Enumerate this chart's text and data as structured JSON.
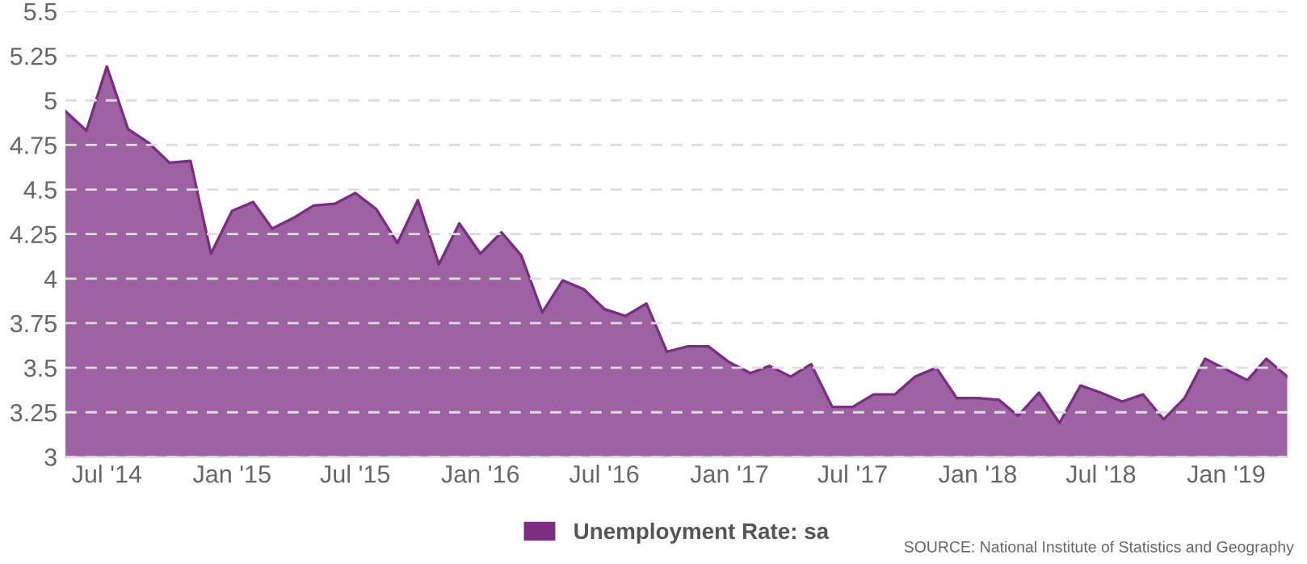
{
  "chart_data": {
    "type": "area",
    "x": [
      "2014-05",
      "2014-06",
      "2014-07",
      "2014-08",
      "2014-09",
      "2014-10",
      "2014-11",
      "2014-12",
      "2015-01",
      "2015-02",
      "2015-03",
      "2015-04",
      "2015-05",
      "2015-06",
      "2015-07",
      "2015-08",
      "2015-09",
      "2015-10",
      "2015-11",
      "2015-12",
      "2016-01",
      "2016-02",
      "2016-03",
      "2016-04",
      "2016-05",
      "2016-06",
      "2016-07",
      "2016-08",
      "2016-09",
      "2016-10",
      "2016-11",
      "2016-12",
      "2017-01",
      "2017-02",
      "2017-03",
      "2017-04",
      "2017-05",
      "2017-06",
      "2017-07",
      "2017-08",
      "2017-09",
      "2017-10",
      "2017-11",
      "2017-12",
      "2018-01",
      "2018-02",
      "2018-03",
      "2018-04",
      "2018-05",
      "2018-06",
      "2018-07",
      "2018-08",
      "2018-09",
      "2018-10",
      "2018-11",
      "2018-12",
      "2019-01",
      "2019-02",
      "2019-03",
      "2019-04"
    ],
    "series": [
      {
        "name": "Unemployment Rate: sa",
        "color": "#7b2d83",
        "values": [
          4.94,
          4.83,
          5.19,
          4.84,
          4.76,
          4.65,
          4.66,
          4.14,
          4.38,
          4.43,
          4.28,
          4.34,
          4.41,
          4.42,
          4.48,
          4.39,
          4.2,
          4.44,
          4.08,
          4.31,
          4.14,
          4.26,
          4.13,
          3.81,
          3.99,
          3.94,
          3.83,
          3.79,
          3.86,
          3.59,
          3.62,
          3.62,
          3.53,
          3.47,
          3.51,
          3.45,
          3.52,
          3.28,
          3.28,
          3.35,
          3.35,
          3.45,
          3.5,
          3.33,
          3.33,
          3.32,
          3.23,
          3.36,
          3.19,
          3.4,
          3.36,
          3.31,
          3.35,
          3.21,
          3.33,
          3.55,
          3.49,
          3.43,
          3.55,
          3.45
        ]
      }
    ],
    "xlim": [
      "2014-05",
      "2019-04"
    ],
    "xticks": [
      {
        "value": "2014-07",
        "label": "Jul '14"
      },
      {
        "value": "2015-01",
        "label": "Jan '15"
      },
      {
        "value": "2015-07",
        "label": "Jul '15"
      },
      {
        "value": "2016-01",
        "label": "Jan '16"
      },
      {
        "value": "2016-07",
        "label": "Jul '16"
      },
      {
        "value": "2017-01",
        "label": "Jan '17"
      },
      {
        "value": "2017-07",
        "label": "Jul '17"
      },
      {
        "value": "2018-01",
        "label": "Jan '18"
      },
      {
        "value": "2018-07",
        "label": "Jul '18"
      },
      {
        "value": "2019-01",
        "label": "Jan '19"
      }
    ],
    "ylim": [
      3,
      5.5
    ],
    "yticks": [
      3,
      3.25,
      3.5,
      3.75,
      4,
      4.25,
      4.5,
      4.75,
      5,
      5.25,
      5.5
    ],
    "grid": "y",
    "line_style": "dashed",
    "legend": "bottom",
    "annotations": [
      "SOURCE: National Institute of Statistics and Geography"
    ]
  }
}
